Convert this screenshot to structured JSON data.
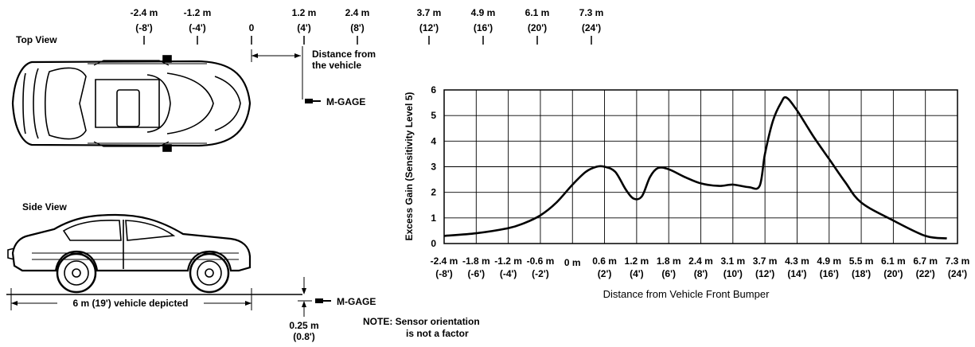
{
  "top_view": {
    "title": "Top View",
    "scale_labels": [
      {
        "m": "-2.4 m",
        "ft": "(-8')"
      },
      {
        "m": "-1.2 m",
        "ft": "(-4')"
      },
      {
        "m": "0",
        "ft": ""
      },
      {
        "m": "1.2 m",
        "ft": "(4')"
      },
      {
        "m": "2.4 m",
        "ft": "(8')"
      },
      {
        "m": "3.7 m",
        "ft": "(12')"
      },
      {
        "m": "4.9 m",
        "ft": "(16')"
      },
      {
        "m": "6.1 m",
        "ft": "(20')"
      },
      {
        "m": "7.3 m",
        "ft": "(24')"
      }
    ],
    "distance_label_line1": "Distance from",
    "distance_label_line2": "the vehicle",
    "sensor_label": "M-GAGE"
  },
  "side_view": {
    "title": "Side View",
    "vehicle_dimension": "6 m (19') vehicle depicted",
    "sensor_label": "M-GAGE",
    "height_m": "0.25 m",
    "height_ft": "(0.8')",
    "note_line1": "NOTE: Sensor orientation",
    "note_line2": "is not a factor"
  },
  "chart_data": {
    "type": "line",
    "xlabel": "Distance from Vehicle Front Bumper",
    "ylabel": "Excess Gain (Sensitivity Level 5)",
    "ylim": [
      0,
      6
    ],
    "xlim": [
      -2.4,
      7.3
    ],
    "grid": true,
    "y_ticks": [
      "0",
      "1",
      "2",
      "3",
      "4",
      "5",
      "6"
    ],
    "x_ticks": [
      {
        "v": -2.4,
        "m": "-2.4 m",
        "ft": "(-8')"
      },
      {
        "v": -1.8,
        "m": "-1.8 m",
        "ft": "(-6')"
      },
      {
        "v": -1.2,
        "m": "-1.2 m",
        "ft": "(-4')"
      },
      {
        "v": -0.6,
        "m": "-0.6 m",
        "ft": "(-2')"
      },
      {
        "v": 0,
        "m": "0 m",
        "ft": ""
      },
      {
        "v": 0.6,
        "m": "0.6 m",
        "ft": "(2')"
      },
      {
        "v": 1.2,
        "m": "1.2 m",
        "ft": "(4')"
      },
      {
        "v": 1.8,
        "m": "1.8 m",
        "ft": "(6')"
      },
      {
        "v": 2.4,
        "m": "2.4 m",
        "ft": "(8')"
      },
      {
        "v": 3.1,
        "m": "3.1 m",
        "ft": "(10')"
      },
      {
        "v": 3.7,
        "m": "3.7 m",
        "ft": "(12')"
      },
      {
        "v": 4.3,
        "m": "4.3 m",
        "ft": "(14')"
      },
      {
        "v": 4.9,
        "m": "4.9 m",
        "ft": "(16')"
      },
      {
        "v": 5.5,
        "m": "5.5 m",
        "ft": "(18')"
      },
      {
        "v": 6.1,
        "m": "6.1 m",
        "ft": "(20')"
      },
      {
        "v": 6.7,
        "m": "6.7 m",
        "ft": "(22')"
      },
      {
        "v": 7.3,
        "m": "7.3 m",
        "ft": "(24')"
      }
    ],
    "series": [
      {
        "x": [
          -2.4,
          -1.8,
          -1.2,
          -0.9,
          -0.6,
          -0.3,
          0.0,
          0.25,
          0.45,
          0.6,
          0.8,
          1.0,
          1.15,
          1.3,
          1.45,
          1.6,
          1.8,
          2.1,
          2.4,
          2.8,
          3.1,
          3.4,
          3.6,
          3.7,
          3.85,
          4.0,
          4.1,
          4.3,
          4.6,
          4.9,
          5.2,
          5.5,
          6.1,
          6.7,
          7.1
        ],
        "y": [
          0.3,
          0.4,
          0.6,
          0.8,
          1.1,
          1.6,
          2.3,
          2.8,
          3.0,
          3.0,
          2.8,
          2.1,
          1.75,
          1.85,
          2.6,
          2.95,
          2.9,
          2.6,
          2.35,
          2.25,
          2.3,
          2.2,
          2.25,
          3.5,
          4.8,
          5.5,
          5.7,
          5.2,
          4.2,
          3.3,
          2.4,
          1.6,
          0.9,
          0.3,
          0.2
        ]
      }
    ]
  }
}
